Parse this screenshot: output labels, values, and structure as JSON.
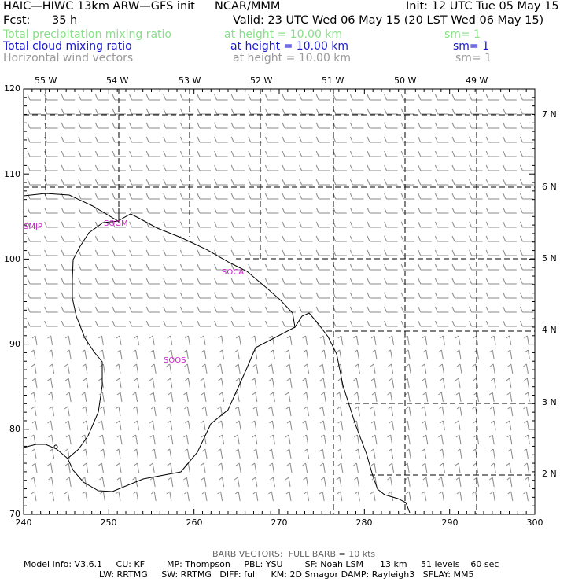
{
  "header": {
    "model_title": "HAIC—HIWC 13km ARW—GFS init",
    "org": "NCAR/MMM",
    "init": "Init: 12 UTC Tue 05 May 15",
    "fcst_label": "Fcst:",
    "fcst_value": "35 h",
    "valid": "Valid: 23 UTC Wed 06 May 15 (20 LST Wed 06 May 15)"
  },
  "fields": [
    {
      "name": "Total precipitation mixing ratio",
      "height": "at height = 10.00 km",
      "sm": "sm= 1",
      "color": "#88e088"
    },
    {
      "name": "Total cloud mixing ratio",
      "height": "at height = 10.00 km",
      "sm": "sm= 1",
      "color": "#1a1ad0"
    },
    {
      "name": "Horizontal wind vectors",
      "height": "at height = 10.00 km",
      "sm": "sm= 1",
      "color": "#9a9a9a"
    }
  ],
  "map": {
    "x_axis_ticks": [
      "240",
      "250",
      "260",
      "270",
      "280",
      "290",
      "300"
    ],
    "y_axis_ticks": [
      "70",
      "80",
      "90",
      "100",
      "110",
      "120"
    ],
    "lon_labels": [
      "55 W",
      "54 W",
      "53 W",
      "52 W",
      "51 W",
      "50 W",
      "49 W"
    ],
    "lat_labels": [
      "7 N",
      "6 N",
      "5 N",
      "4 N",
      "3 N",
      "2 N"
    ],
    "stations": [
      "SMJP",
      "SOGM",
      "SOCA",
      "SOOS"
    ],
    "station_color": "#cc22cc",
    "barb_color": "#8a8a8a",
    "grid_x_range": [
      240,
      300
    ],
    "grid_y_range": [
      70,
      120
    ]
  },
  "footer": {
    "barb_note": "BARB VECTORS:  FULL BARB = 10 kts",
    "line1": "Model Info: V3.6.1     CU: KF        MP: Thompson     PBL: YSU        SF: Noah LSM      13 km     51 levels    60 sec",
    "line2": "LW: RRTMG     SW: RRTMG   DIFF: full     KM: 2D Smagor DAMP: Rayleigh3   SFLAY: MM5"
  }
}
